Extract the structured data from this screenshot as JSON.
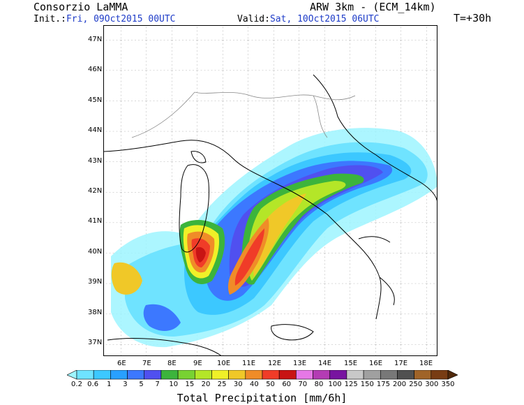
{
  "header": {
    "org": "Consorzio LaMMA",
    "model": "ARW 3km - (ECM_14km)",
    "init_label": "Init.:",
    "init_value": "Fri, 09Oct2015 00UTC",
    "valid_label": "Valid:",
    "valid_value": "Sat, 10Oct2015 06UTC",
    "lead": "T=+30h"
  },
  "map": {
    "lat_ticks": [
      "47N",
      "46N",
      "45N",
      "44N",
      "43N",
      "42N",
      "41N",
      "40N",
      "39N",
      "38N",
      "37N"
    ],
    "lon_ticks": [
      "6E",
      "7E",
      "8E",
      "9E",
      "10E",
      "11E",
      "12E",
      "13E",
      "14E",
      "15E",
      "16E",
      "17E",
      "18E"
    ]
  },
  "colorbar": {
    "title": "Total Precipitation [mm/6h]",
    "labels": [
      "0.2",
      "0.6",
      "1",
      "3",
      "5",
      "7",
      "10",
      "15",
      "20",
      "25",
      "30",
      "40",
      "50",
      "60",
      "70",
      "80",
      "100",
      "125",
      "150",
      "175",
      "200",
      "250",
      "300",
      "350"
    ],
    "colors": [
      "#9ef5ff",
      "#6fe3ff",
      "#3cc8ff",
      "#28a0ff",
      "#3c78ff",
      "#5050f0",
      "#3cb43c",
      "#78d232",
      "#b4e628",
      "#f0f028",
      "#f0c828",
      "#f08c28",
      "#f03c28",
      "#c81414",
      "#e678e6",
      "#b43cb4",
      "#7814a0",
      "#c8c8c8",
      "#a0a0a0",
      "#787878",
      "#505050",
      "#a06428",
      "#783c14",
      "#50280a"
    ]
  }
}
